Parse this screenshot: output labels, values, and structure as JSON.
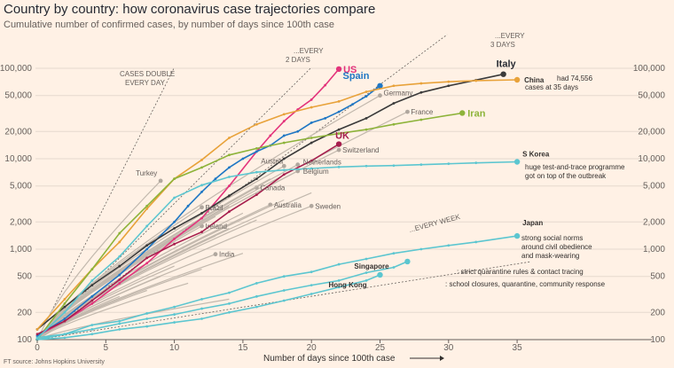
{
  "chart_data": {
    "type": "line",
    "title": "Country by country: how coronavirus case trajectories compare",
    "subtitle": "Cumulative number of confirmed cases, by number of days since 100th case",
    "xlabel": "Number of days since 100th case",
    "ylabel": "",
    "yscale": "log",
    "xlim": [
      0,
      36
    ],
    "ylim": [
      100,
      100000
    ],
    "x_ticks": [
      0,
      5,
      10,
      15,
      20,
      25,
      30,
      35
    ],
    "y_ticks": [
      100,
      200,
      500,
      1000,
      2000,
      5000,
      10000,
      20000,
      50000,
      100000
    ],
    "y_tick_labels": [
      "100",
      "200",
      "500",
      "1,000",
      "2,000",
      "5,000",
      "10,000",
      "20,000",
      "50,000",
      "100,000"
    ],
    "grid": true,
    "reference_lines": [
      {
        "label": "CASES DOUBLE EVERY DAY",
        "doubling_days": 1
      },
      {
        "label": "...EVERY 2 DAYS",
        "doubling_days": 2
      },
      {
        "label": "...EVERY 3 DAYS",
        "doubling_days": 3
      },
      {
        "label": "...EVERY WEEK",
        "doubling_days": 7
      }
    ],
    "highlighted_series": [
      {
        "name": "US",
        "color": "#e3337b",
        "end_day": 22,
        "end_value": 98000,
        "values": [
          [
            0,
            110
          ],
          [
            2,
            160
          ],
          [
            4,
            250
          ],
          [
            6,
            420
          ],
          [
            8,
            700
          ],
          [
            10,
            1300
          ],
          [
            12,
            2200
          ],
          [
            14,
            5000
          ],
          [
            16,
            12000
          ],
          [
            17,
            18000
          ],
          [
            18,
            26000
          ],
          [
            19,
            35000
          ],
          [
            20,
            45000
          ],
          [
            21,
            65000
          ],
          [
            22,
            98000
          ]
        ]
      },
      {
        "name": "Spain",
        "color": "#1f77c4",
        "end_day": 25,
        "end_value": 64000,
        "values": [
          [
            0,
            110
          ],
          [
            2,
            170
          ],
          [
            4,
            300
          ],
          [
            6,
            520
          ],
          [
            8,
            1000
          ],
          [
            10,
            2000
          ],
          [
            11,
            3000
          ],
          [
            12,
            4300
          ],
          [
            13,
            6000
          ],
          [
            14,
            8000
          ],
          [
            15,
            10000
          ],
          [
            16,
            12000
          ],
          [
            17,
            14000
          ],
          [
            18,
            18000
          ],
          [
            19,
            20000
          ],
          [
            20,
            25000
          ],
          [
            21,
            28000
          ],
          [
            22,
            33000
          ],
          [
            23,
            40000
          ],
          [
            24,
            49000
          ],
          [
            25,
            64000
          ]
        ]
      },
      {
        "name": "Italy",
        "color": "#3a3a3a",
        "end_day": 34,
        "end_value": 86000,
        "values": [
          [
            0,
            130
          ],
          [
            2,
            230
          ],
          [
            4,
            400
          ],
          [
            6,
            650
          ],
          [
            8,
            1100
          ],
          [
            10,
            1700
          ],
          [
            12,
            2500
          ],
          [
            14,
            3900
          ],
          [
            16,
            6000
          ],
          [
            18,
            10000
          ],
          [
            20,
            15000
          ],
          [
            22,
            21000
          ],
          [
            24,
            28000
          ],
          [
            26,
            41000
          ],
          [
            28,
            54000
          ],
          [
            30,
            64000
          ],
          [
            32,
            74000
          ],
          [
            34,
            86000
          ]
        ]
      },
      {
        "name": "China",
        "color": "#e8a23a",
        "end_day": 35,
        "end_value": 74556,
        "values": [
          [
            0,
            130
          ],
          [
            2,
            280
          ],
          [
            4,
            600
          ],
          [
            6,
            1200
          ],
          [
            8,
            2800
          ],
          [
            10,
            6000
          ],
          [
            12,
            9700
          ],
          [
            14,
            17000
          ],
          [
            16,
            24000
          ],
          [
            18,
            31000
          ],
          [
            20,
            37000
          ],
          [
            22,
            43000
          ],
          [
            24,
            55000
          ],
          [
            26,
            64000
          ],
          [
            28,
            68000
          ],
          [
            30,
            71000
          ],
          [
            32,
            73000
          ],
          [
            35,
            74556
          ]
        ]
      },
      {
        "name": "Iran",
        "color": "#8db33a",
        "end_day": 31,
        "end_value": 32000,
        "values": [
          [
            0,
            100
          ],
          [
            2,
            250
          ],
          [
            4,
            600
          ],
          [
            6,
            1500
          ],
          [
            8,
            3000
          ],
          [
            10,
            6000
          ],
          [
            12,
            8000
          ],
          [
            14,
            11000
          ],
          [
            16,
            13000
          ],
          [
            18,
            15000
          ],
          [
            20,
            17000
          ],
          [
            22,
            19000
          ],
          [
            24,
            21000
          ],
          [
            26,
            24000
          ],
          [
            28,
            27000
          ],
          [
            31,
            32000
          ]
        ]
      },
      {
        "name": "UK",
        "color": "#a61e4d",
        "end_day": 22,
        "end_value": 14500,
        "values": [
          [
            0,
            115
          ],
          [
            2,
            160
          ],
          [
            4,
            270
          ],
          [
            6,
            460
          ],
          [
            8,
            800
          ],
          [
            10,
            1140
          ],
          [
            12,
            1550
          ],
          [
            14,
            2600
          ],
          [
            16,
            4000
          ],
          [
            18,
            6700
          ],
          [
            20,
            9500
          ],
          [
            22,
            14500
          ]
        ]
      },
      {
        "name": "S Korea",
        "color": "#5cc6d0",
        "end_day": 35,
        "end_value": 9241,
        "values": [
          [
            0,
            104
          ],
          [
            2,
            200
          ],
          [
            4,
            450
          ],
          [
            6,
            830
          ],
          [
            8,
            1800
          ],
          [
            10,
            3700
          ],
          [
            12,
            5100
          ],
          [
            14,
            6300
          ],
          [
            16,
            7100
          ],
          [
            18,
            7500
          ],
          [
            20,
            7800
          ],
          [
            22,
            8100
          ],
          [
            24,
            8300
          ],
          [
            26,
            8400
          ],
          [
            28,
            8600
          ],
          [
            30,
            8800
          ],
          [
            32,
            9000
          ],
          [
            35,
            9241
          ]
        ]
      },
      {
        "name": "Japan",
        "color": "#5cc6d0",
        "end_day": 35,
        "end_value": 1400,
        "values": [
          [
            0,
            105
          ],
          [
            2,
            115
          ],
          [
            4,
            145
          ],
          [
            6,
            160
          ],
          [
            8,
            195
          ],
          [
            10,
            230
          ],
          [
            12,
            280
          ],
          [
            14,
            330
          ],
          [
            16,
            420
          ],
          [
            18,
            500
          ],
          [
            20,
            560
          ],
          [
            22,
            680
          ],
          [
            24,
            780
          ],
          [
            26,
            900
          ],
          [
            28,
            1000
          ],
          [
            30,
            1100
          ],
          [
            32,
            1200
          ],
          [
            35,
            1400
          ]
        ]
      },
      {
        "name": "Singapore",
        "color": "#5cc6d0",
        "end_day": 27,
        "end_value": 730,
        "values": [
          [
            0,
            100
          ],
          [
            2,
            115
          ],
          [
            4,
            130
          ],
          [
            6,
            150
          ],
          [
            8,
            170
          ],
          [
            10,
            190
          ],
          [
            12,
            220
          ],
          [
            14,
            250
          ],
          [
            16,
            300
          ],
          [
            18,
            350
          ],
          [
            20,
            400
          ],
          [
            22,
            450
          ],
          [
            24,
            550
          ],
          [
            26,
            630
          ],
          [
            27,
            730
          ]
        ]
      },
      {
        "name": "Hong Kong",
        "color": "#5cc6d0",
        "end_day": 25,
        "end_value": 520,
        "values": [
          [
            0,
            100
          ],
          [
            2,
            105
          ],
          [
            4,
            115
          ],
          [
            6,
            130
          ],
          [
            8,
            140
          ],
          [
            10,
            155
          ],
          [
            12,
            170
          ],
          [
            14,
            200
          ],
          [
            16,
            230
          ],
          [
            18,
            270
          ],
          [
            20,
            320
          ],
          [
            22,
            380
          ],
          [
            24,
            450
          ],
          [
            25,
            520
          ]
        ]
      }
    ],
    "labelled_grey_series": [
      {
        "name": "Germany",
        "end_day": 25,
        "end_value": 50000
      },
      {
        "name": "France",
        "end_day": 27,
        "end_value": 33000
      },
      {
        "name": "Switzerland",
        "end_day": 22,
        "end_value": 12500
      },
      {
        "name": "Austria",
        "end_day": 18,
        "end_value": 8300
      },
      {
        "name": "Netherlands",
        "end_day": 19,
        "end_value": 8600
      },
      {
        "name": "Belgium",
        "end_day": 19,
        "end_value": 7300
      },
      {
        "name": "Turkey",
        "end_day": 9,
        "end_value": 5700
      },
      {
        "name": "Canada",
        "end_day": 16,
        "end_value": 4800
      },
      {
        "name": "Brazil",
        "end_day": 12,
        "end_value": 2900
      },
      {
        "name": "Australia",
        "end_day": 17,
        "end_value": 3100
      },
      {
        "name": "Sweden",
        "end_day": 20,
        "end_value": 3000
      },
      {
        "name": "Ireland",
        "end_day": 12,
        "end_value": 1800
      },
      {
        "name": "India",
        "end_day": 13,
        "end_value": 880
      }
    ],
    "annotations": [
      {
        "series": "China",
        "text": "had 74,556 cases at 35 days"
      },
      {
        "series": "S Korea",
        "text": "huge test-and-trace programme got on top of the outbreak"
      },
      {
        "series": "Japan",
        "text": "strong social norms around civil obedience and mask-wearing"
      },
      {
        "series": "Singapore",
        "text": ": strict quarantine rules & contact tracing"
      },
      {
        "series": "Hong Kong",
        "text": ": school closures, quarantine, community response"
      }
    ]
  },
  "labels": {
    "ref_day": [
      "CASES DOUBLE",
      "EVERY DAY"
    ],
    "ref_2": [
      "...EVERY",
      "2 DAYS"
    ],
    "ref_3": [
      "...EVERY",
      "3 DAYS"
    ],
    "ref_week": "...EVERY WEEK",
    "china_note": [
      "had 74,556",
      "cases at 35 days"
    ],
    "skorea_note": [
      "huge test-and-trace programme",
      "got on top of the outbreak"
    ],
    "japan_note": [
      "strong social norms",
      "around civil obedience",
      "and mask-wearing"
    ],
    "singapore_note": ": strict quarantine rules & contact tracing",
    "hongkong_note": ": school closures, quarantine, community response",
    "footer": "FT source: Johns Hopkins University"
  }
}
